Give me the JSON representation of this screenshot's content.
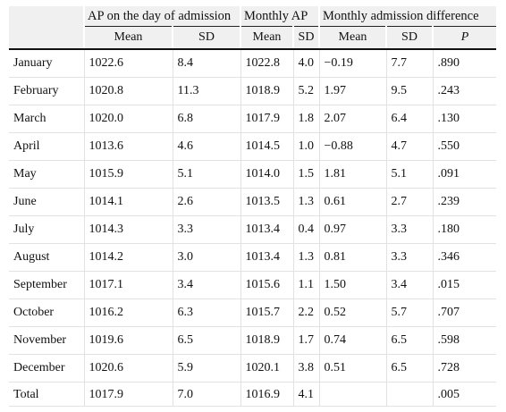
{
  "table": {
    "group_headers": [
      "AP on the day of admission",
      "Monthly AP",
      "Monthly admission difference"
    ],
    "sub_headers": [
      "Mean",
      "SD",
      "Mean",
      "SD",
      "Mean",
      "SD",
      "P"
    ],
    "rows": [
      [
        "January",
        "1022.6",
        "8.4",
        "1022.8",
        "4.0",
        "−0.19",
        "7.7",
        ".890"
      ],
      [
        "February",
        "1020.8",
        "11.3",
        "1018.9",
        "5.2",
        "1.97",
        "9.5",
        ".243"
      ],
      [
        "March",
        "1020.0",
        "6.8",
        "1017.9",
        "1.8",
        "2.07",
        "6.4",
        ".130"
      ],
      [
        "April",
        "1013.6",
        "4.6",
        "1014.5",
        "1.0",
        "−0.88",
        "4.7",
        ".550"
      ],
      [
        "May",
        "1015.9",
        "5.1",
        "1014.0",
        "1.5",
        "1.81",
        "5.1",
        ".091"
      ],
      [
        "June",
        "1014.1",
        "2.6",
        "1013.5",
        "1.3",
        "0.61",
        "2.7",
        ".239"
      ],
      [
        "July",
        "1014.3",
        "3.3",
        "1013.4",
        "0.4",
        "0.97",
        "3.3",
        ".180"
      ],
      [
        "August",
        "1014.2",
        "3.0",
        "1013.4",
        "1.3",
        "0.81",
        "3.3",
        ".346"
      ],
      [
        "September",
        "1017.1",
        "3.4",
        "1015.6",
        "1.1",
        "1.50",
        "3.4",
        ".015"
      ],
      [
        "October",
        "1016.2",
        "6.3",
        "1015.7",
        "2.2",
        "0.52",
        "5.7",
        ".707"
      ],
      [
        "November",
        "1019.6",
        "6.5",
        "1018.9",
        "1.7",
        "0.74",
        "6.5",
        ".598"
      ],
      [
        "December",
        "1020.6",
        "5.9",
        "1020.1",
        "3.8",
        "0.51",
        "6.5",
        ".728"
      ],
      [
        "Total",
        "1017.9",
        "7.0",
        "1016.9",
        "4.1",
        "",
        "",
        ".005"
      ]
    ]
  }
}
